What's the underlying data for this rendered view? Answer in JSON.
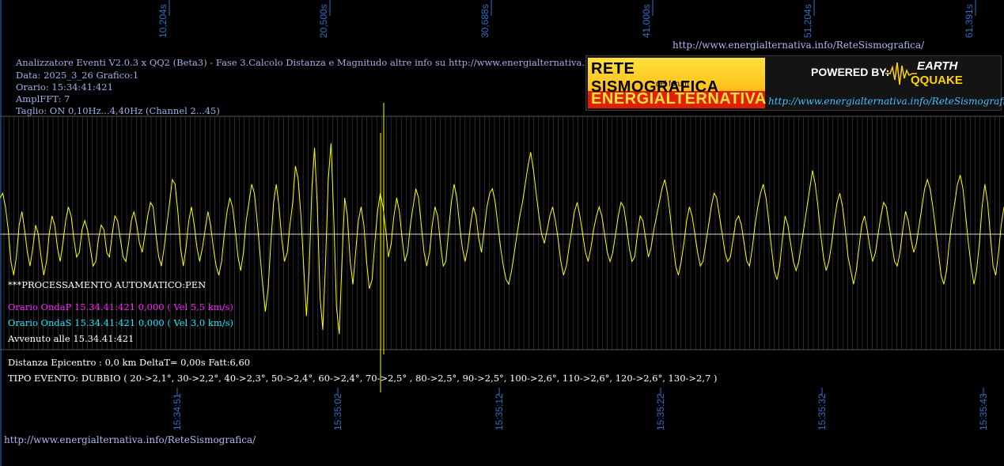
{
  "header": {
    "line1": "Analizzatore Eventi V2.0.3 x QQ2 (Beta3) - Fase 3.Calcolo Distanza e Magnitudo altre info su http://www.energialternativa.info/ReteSism",
    "line2": "Data: 2025_3_26 Grafico:1",
    "line3": "Orario: 15:34:41:421",
    "line4": "AmplFFT: 7",
    "line5": "Taglio: ON 0,10Hz...4,40Hz      (Channel 2...45)"
  },
  "url_top": "http://www.energialternativa.info/ReteSismografica/",
  "url_bottom": "http://www.energialternativa.info/ReteSismografica/",
  "logo": {
    "title1": "RETE SISMOGRAFICA",
    "title2": "del forum",
    "title3": "ENERGIALTERNATIVA",
    "powered": "POWERED BY:",
    "earth": "EARTH",
    "qquake": "QQUAKE",
    "url": "http://www.energialternativa.info/ReteSismografica"
  },
  "info": {
    "processing": "***PROCESSAMENTO AUTOMATICO:PEN",
    "onda_p": "Orario OndaP 15.34.41:421  0,000 ( Vel 5,5 km/s)",
    "onda_s": "Orario OndaS 15.34.41:421  0,000 ( Vel 3,0 km/s)",
    "avvenuto": "Avvenuto alle 15.34.41:421",
    "distanza": "Distanza Epicentro : 0,0 km DeltaT= 0,00s  Fatt:6,60",
    "tipo_evento": "TIPO EVENTO: DUBBIO ( 20->2,1°, 30->2,2°, 40->2,3°, 50->2,4°, 60->2,4°, 70->2,5° , 80->2,5°, 90->2,5°, 100->2,6°, 110->2,6°, 120->2,6°, 130->2,7 )"
  },
  "chart_data": {
    "type": "line",
    "title": "",
    "xlabel": "",
    "ylabel": "",
    "top_ticks": [
      "10,204s",
      "20,500s",
      "30,688s",
      "41,000s",
      "51,204s",
      "61,391s"
    ],
    "bottom_ticks": [
      "15:34:51",
      "15:35:02",
      "15:35:12",
      "15:35:22",
      "15:35:32",
      "15:35:43"
    ],
    "grid": true,
    "colors": {
      "signal": "#ffff00",
      "grid": "#444444",
      "tick": "#2f6ec8"
    },
    "series": [
      {
        "values": [
          0.4,
          0.45,
          0.3,
          0.05,
          -0.3,
          -0.45,
          -0.25,
          0.1,
          0.25,
          0.05,
          -0.2,
          -0.35,
          -0.15,
          0.1,
          0.0,
          -0.25,
          -0.45,
          -0.3,
          0.0,
          0.2,
          0.1,
          -0.15,
          -0.3,
          -0.1,
          0.15,
          0.3,
          0.2,
          -0.05,
          -0.25,
          -0.2,
          0.05,
          0.15,
          0.05,
          -0.15,
          -0.35,
          -0.3,
          -0.05,
          0.1,
          0.05,
          -0.2,
          -0.25,
          0.0,
          0.2,
          0.15,
          -0.05,
          -0.25,
          -0.3,
          -0.1,
          0.15,
          0.25,
          0.1,
          -0.1,
          -0.2,
          0.0,
          0.2,
          0.35,
          0.3,
          0.0,
          -0.25,
          -0.35,
          -0.15,
          0.1,
          0.35,
          0.6,
          0.55,
          0.25,
          -0.15,
          -0.35,
          -0.15,
          0.15,
          0.3,
          0.1,
          -0.15,
          -0.3,
          -0.15,
          0.05,
          0.25,
          0.1,
          -0.15,
          -0.35,
          -0.45,
          -0.3,
          0.0,
          0.25,
          0.4,
          0.3,
          0.05,
          -0.25,
          -0.4,
          -0.2,
          0.15,
          0.35,
          0.55,
          0.45,
          0.15,
          -0.2,
          -0.55,
          -0.85,
          -0.6,
          -0.1,
          0.35,
          0.55,
          0.3,
          -0.05,
          -0.3,
          -0.2,
          0.1,
          0.35,
          0.75,
          0.6,
          0.2,
          -0.35,
          -0.9,
          -0.4,
          0.5,
          0.95,
          0.3,
          -0.7,
          -1.05,
          -0.3,
          0.6,
          1.0,
          0.2,
          -0.8,
          -1.1,
          -0.3,
          0.4,
          0.2,
          -0.3,
          -0.55,
          -0.2,
          0.15,
          0.3,
          0.1,
          -0.3,
          -0.6,
          -0.5,
          -0.1,
          0.25,
          0.45,
          0.3,
          0.05,
          -0.25,
          -0.1,
          0.2,
          0.4,
          0.25,
          -0.05,
          -0.3,
          -0.2,
          0.1,
          0.3,
          0.5,
          0.4,
          0.1,
          -0.2,
          -0.35,
          -0.2,
          0.1,
          0.3,
          0.2,
          -0.1,
          -0.35,
          -0.3,
          0.05,
          0.35,
          0.55,
          0.4,
          0.1,
          -0.15,
          -0.3,
          -0.15,
          0.1,
          0.3,
          0.2,
          -0.05,
          -0.2,
          0.05,
          0.3,
          0.45,
          0.5,
          0.35,
          0.1,
          -0.15,
          -0.35,
          -0.5,
          -0.55,
          -0.4,
          -0.2,
          0.0,
          0.2,
          0.35,
          0.55,
          0.75,
          0.9,
          0.7,
          0.45,
          0.2,
          0.0,
          -0.1,
          0.05,
          0.2,
          0.3,
          0.15,
          -0.05,
          -0.3,
          -0.45,
          -0.35,
          -0.15,
          0.05,
          0.25,
          0.35,
          0.2,
          0.0,
          -0.2,
          -0.3,
          -0.15,
          0.05,
          0.2,
          0.3,
          0.2,
          0.0,
          -0.2,
          -0.3,
          -0.2,
          0.0,
          0.2,
          0.35,
          0.3,
          0.1,
          -0.15,
          -0.3,
          -0.25,
          0.0,
          0.2,
          0.15,
          -0.05,
          -0.25,
          -0.15,
          0.05,
          0.2,
          0.35,
          0.5,
          0.6,
          0.45,
          0.2,
          -0.1,
          -0.35,
          -0.45,
          -0.3,
          -0.1,
          0.15,
          0.3,
          0.2,
          0.0,
          -0.2,
          -0.35,
          -0.3,
          -0.1,
          0.1,
          0.3,
          0.45,
          0.4,
          0.2,
          0.0,
          -0.2,
          -0.3,
          -0.25,
          -0.05,
          0.15,
          0.2,
          0.1,
          -0.1,
          -0.3,
          -0.35,
          -0.15,
          0.1,
          0.3,
          0.45,
          0.55,
          0.4,
          0.15,
          -0.15,
          -0.4,
          -0.5,
          -0.35,
          -0.05,
          0.2,
          0.1,
          -0.1,
          -0.3,
          -0.4,
          -0.3,
          -0.1,
          0.1,
          0.3,
          0.5,
          0.7,
          0.55,
          0.3,
          0.0,
          -0.25,
          -0.4,
          -0.3,
          -0.1,
          0.15,
          0.35,
          0.45,
          0.3,
          0.05,
          -0.25,
          -0.4,
          -0.55,
          -0.4,
          -0.15,
          0.1,
          0.2,
          0.05,
          -0.15,
          -0.3,
          -0.2,
          0.0,
          0.2,
          0.35,
          0.3,
          0.1,
          -0.1,
          -0.3,
          -0.35,
          -0.2,
          0.05,
          0.25,
          0.15,
          -0.05,
          -0.2,
          -0.1,
          0.1,
          0.3,
          0.5,
          0.6,
          0.5,
          0.3,
          0.05,
          -0.2,
          -0.45,
          -0.55,
          -0.4,
          -0.1,
          0.15,
          0.35,
          0.55,
          0.65,
          0.5,
          0.2,
          -0.1,
          -0.35,
          -0.55,
          -0.4,
          -0.1,
          0.3,
          0.55,
          0.35,
          0.0,
          -0.35,
          -0.45,
          -0.2,
          0.1,
          0.3
        ]
      }
    ]
  }
}
